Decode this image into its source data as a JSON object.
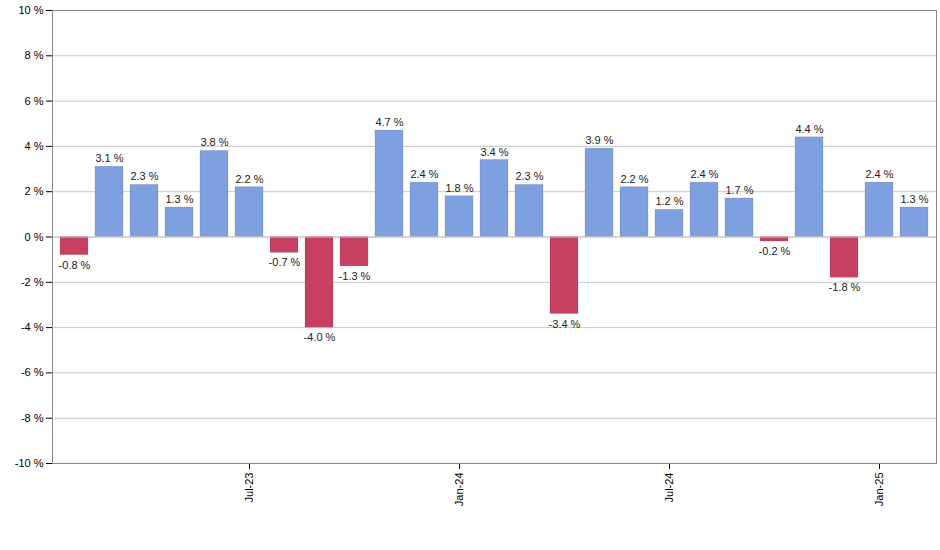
{
  "chart_data": {
    "type": "bar",
    "categories": [
      null,
      null,
      null,
      null,
      null,
      "Jul-23",
      null,
      null,
      null,
      null,
      null,
      "Jan-24",
      null,
      null,
      null,
      null,
      null,
      "Jul-24",
      null,
      null,
      null,
      null,
      null,
      "Jan-25",
      null
    ],
    "values": [
      -0.8,
      3.1,
      2.3,
      1.3,
      3.8,
      2.2,
      -0.7,
      -4.0,
      -1.3,
      4.7,
      2.4,
      1.8,
      3.4,
      2.3,
      -3.4,
      3.9,
      2.2,
      1.2,
      2.4,
      1.7,
      -0.2,
      4.4,
      -1.8,
      2.4,
      1.3
    ],
    "value_labels": [
      "-0.8 %",
      "3.1 %",
      "2.3 %",
      "1.3 %",
      "3.8 %",
      "2.2 %",
      "-0.7 %",
      "-4.0 %",
      "-1.3 %",
      "4.7 %",
      "2.4 %",
      "1.8 %",
      "3.4 %",
      "2.3 %",
      "-3.4 %",
      "3.9 %",
      "2.2 %",
      "1.2 %",
      "2.4 %",
      "1.7 %",
      "-0.2 %",
      "4.4 %",
      "-1.8 %",
      "2.4 %",
      "1.3 %"
    ],
    "colors": [
      "#c8405f",
      "#7e9fe0",
      "#7e9fe0",
      "#7e9fe0",
      "#7e9fe0",
      "#7e9fe0",
      "#c8405f",
      "#c8405f",
      "#c8405f",
      "#7e9fe0",
      "#7e9fe0",
      "#7e9fe0",
      "#7e9fe0",
      "#7e9fe0",
      "#c8405f",
      "#7e9fe0",
      "#7e9fe0",
      "#7e9fe0",
      "#7e9fe0",
      "#7e9fe0",
      "#c8405f",
      "#7e9fe0",
      "#c8405f",
      "#7e9fe0",
      "#7e9fe0"
    ],
    "ylim": [
      -10,
      10
    ],
    "yticks": [
      {
        "value": -10,
        "label": "-10 %"
      },
      {
        "value": -8,
        "label": "-8 %"
      },
      {
        "value": -6,
        "label": "-6 %"
      },
      {
        "value": -4,
        "label": "-4 %"
      },
      {
        "value": -2,
        "label": "-2 %"
      },
      {
        "value": 0,
        "label": "0 %"
      },
      {
        "value": 2,
        "label": "2 %"
      },
      {
        "value": 4,
        "label": "4 %"
      },
      {
        "value": 6,
        "label": "6 %"
      },
      {
        "value": 8,
        "label": "8 %"
      },
      {
        "value": 10,
        "label": "10 %"
      }
    ],
    "grid": true,
    "data_labels": true
  }
}
